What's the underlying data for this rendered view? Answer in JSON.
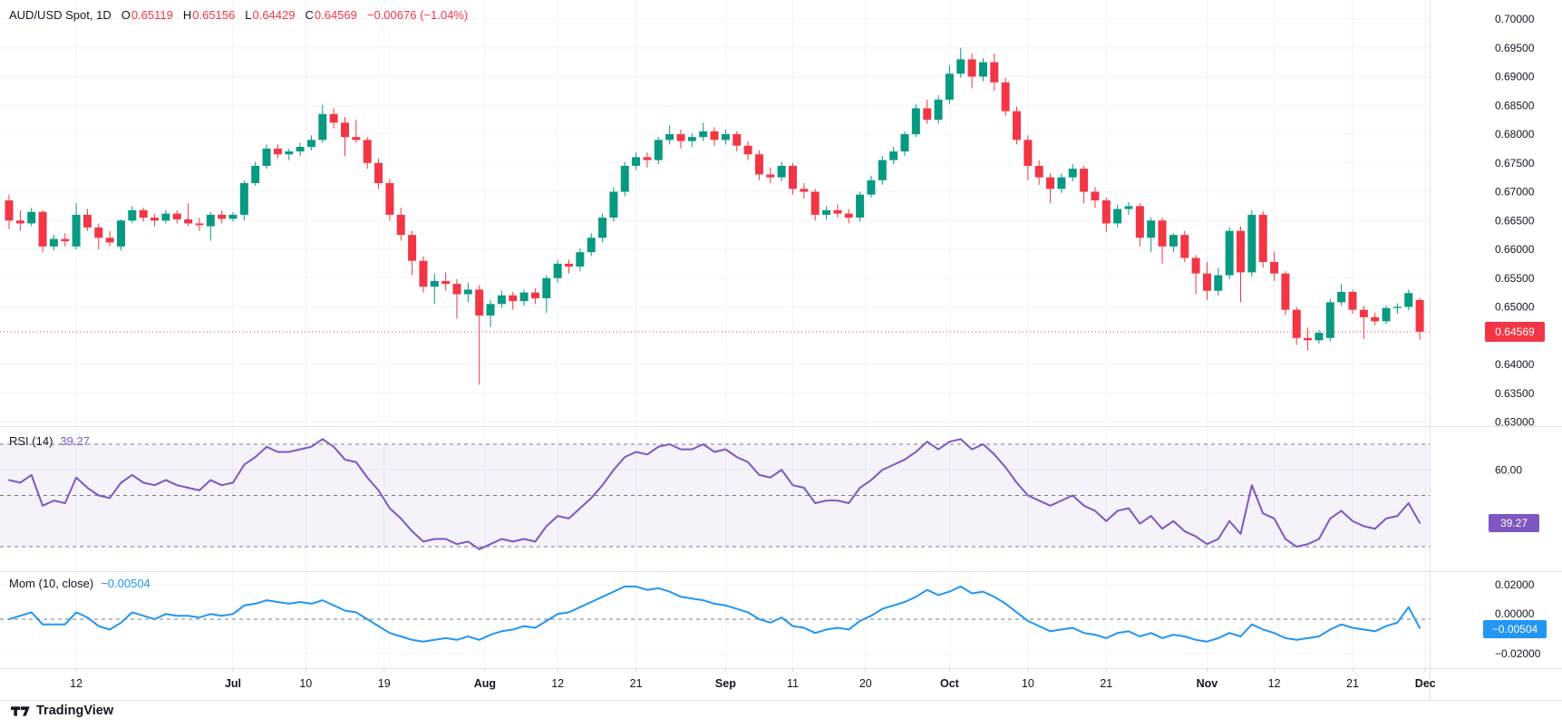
{
  "header": {
    "symbol": "AUD/USD Spot, 1D",
    "o_label": "O",
    "o": "0.65119",
    "h_label": "H",
    "h": "0.65156",
    "l_label": "L",
    "l": "0.64429",
    "c_label": "C",
    "c": "0.64569",
    "change": "−0.00676 (−1.04%)"
  },
  "rsi_legend": {
    "label": "RSI (14)",
    "value": "39.27"
  },
  "mom_legend": {
    "label": "Mom (10, close)",
    "value": "−0.00504"
  },
  "badges": {
    "price": "0.64569",
    "rsi": "39.27",
    "mom": "−0.00504"
  },
  "watermark": {
    "text": "TradingView"
  },
  "colors": {
    "up": "#089981",
    "down": "#F23645",
    "rsi": "#7E57C2",
    "rsi_band": "rgba(126,87,194,0.08)",
    "mom": "#2196F3",
    "grid": "#F0F3FA",
    "separator": "#E0E3EB",
    "dashed": "#787B86",
    "text": "#131722"
  },
  "chart_data": {
    "type": "candlestick",
    "title": "AUD/USD Spot, 1D",
    "symbol": "AUD/USD Spot",
    "interval": "1D",
    "ohlc_last": {
      "open": 0.65119,
      "high": 0.65156,
      "low": 0.64429,
      "close": 0.64569,
      "change": -0.00676,
      "change_pct": -1.04
    },
    "last_price": 0.64569,
    "price_axis": {
      "min": 0.63,
      "max": 0.7,
      "ticks": [
        {
          "label": "0.70000",
          "value": 0.7
        },
        {
          "label": "0.69500",
          "value": 0.695
        },
        {
          "label": "0.69000",
          "value": 0.69
        },
        {
          "label": "0.68500",
          "value": 0.685
        },
        {
          "label": "0.68000",
          "value": 0.68
        },
        {
          "label": "0.67500",
          "value": 0.675
        },
        {
          "label": "0.67000",
          "value": 0.67
        },
        {
          "label": "0.66500",
          "value": 0.665
        },
        {
          "label": "0.66000",
          "value": 0.66
        },
        {
          "label": "0.65500",
          "value": 0.655
        },
        {
          "label": "0.65000",
          "value": 0.65
        },
        {
          "label": "0.64000",
          "value": 0.64
        },
        {
          "label": "0.63500",
          "value": 0.635
        },
        {
          "label": "0.63000",
          "value": 0.63
        }
      ]
    },
    "time_ticks": [
      {
        "i": 6,
        "label": "12",
        "bold": false
      },
      {
        "i": 20,
        "label": "Jul",
        "bold": true
      },
      {
        "i": 26.5,
        "label": "10",
        "bold": false
      },
      {
        "i": 33.5,
        "label": "19",
        "bold": false
      },
      {
        "i": 42.5,
        "label": "Aug",
        "bold": true
      },
      {
        "i": 49,
        "label": "12",
        "bold": false
      },
      {
        "i": 56,
        "label": "21",
        "bold": false
      },
      {
        "i": 64,
        "label": "Sep",
        "bold": true
      },
      {
        "i": 70,
        "label": "11",
        "bold": false
      },
      {
        "i": 76.5,
        "label": "20",
        "bold": false
      },
      {
        "i": 84,
        "label": "Oct",
        "bold": true
      },
      {
        "i": 91,
        "label": "10",
        "bold": false
      },
      {
        "i": 98,
        "label": "21",
        "bold": false
      },
      {
        "i": 107,
        "label": "Nov",
        "bold": true
      },
      {
        "i": 113,
        "label": "12",
        "bold": false
      },
      {
        "i": 120,
        "label": "21",
        "bold": false
      },
      {
        "i": 126.5,
        "label": "Dec",
        "bold": true
      }
    ],
    "candles": [
      [
        0.6685,
        0.6695,
        0.6635,
        0.665
      ],
      [
        0.665,
        0.6668,
        0.6632,
        0.6645
      ],
      [
        0.6645,
        0.6672,
        0.664,
        0.6665
      ],
      [
        0.6665,
        0.6668,
        0.6595,
        0.6605
      ],
      [
        0.6605,
        0.6625,
        0.6598,
        0.6618
      ],
      [
        0.6618,
        0.6628,
        0.6605,
        0.6614
      ],
      [
        0.6605,
        0.668,
        0.66,
        0.666
      ],
      [
        0.666,
        0.667,
        0.6632,
        0.6638
      ],
      [
        0.6638,
        0.6645,
        0.66,
        0.662
      ],
      [
        0.662,
        0.6632,
        0.6605,
        0.6612
      ],
      [
        0.6605,
        0.6652,
        0.6598,
        0.665
      ],
      [
        0.665,
        0.6675,
        0.6645,
        0.6668
      ],
      [
        0.6668,
        0.6672,
        0.6648,
        0.6655
      ],
      [
        0.6655,
        0.6662,
        0.664,
        0.665
      ],
      [
        0.665,
        0.6668,
        0.6645,
        0.6662
      ],
      [
        0.6662,
        0.6668,
        0.6645,
        0.6652
      ],
      [
        0.6652,
        0.668,
        0.664,
        0.6645
      ],
      [
        0.6645,
        0.6655,
        0.6632,
        0.6642
      ],
      [
        0.664,
        0.6665,
        0.6615,
        0.666
      ],
      [
        0.666,
        0.6668,
        0.6645,
        0.6653
      ],
      [
        0.6653,
        0.6665,
        0.6648,
        0.666
      ],
      [
        0.666,
        0.672,
        0.665,
        0.6715
      ],
      [
        0.6715,
        0.6752,
        0.671,
        0.6745
      ],
      [
        0.6745,
        0.6782,
        0.674,
        0.6775
      ],
      [
        0.6775,
        0.6782,
        0.6758,
        0.6765
      ],
      [
        0.6765,
        0.6775,
        0.6755,
        0.677
      ],
      [
        0.677,
        0.6785,
        0.6762,
        0.6778
      ],
      [
        0.6778,
        0.6798,
        0.6772,
        0.679
      ],
      [
        0.679,
        0.6851,
        0.6785,
        0.6835
      ],
      [
        0.6835,
        0.6845,
        0.681,
        0.682
      ],
      [
        0.682,
        0.683,
        0.6762,
        0.6795
      ],
      [
        0.6795,
        0.6825,
        0.6785,
        0.679
      ],
      [
        0.679,
        0.6795,
        0.674,
        0.675
      ],
      [
        0.675,
        0.6758,
        0.6705,
        0.6715
      ],
      [
        0.6715,
        0.6722,
        0.665,
        0.666
      ],
      [
        0.666,
        0.6672,
        0.6615,
        0.6625
      ],
      [
        0.6625,
        0.6632,
        0.6555,
        0.658
      ],
      [
        0.658,
        0.6588,
        0.6525,
        0.6535
      ],
      [
        0.6535,
        0.6558,
        0.6505,
        0.6545
      ],
      [
        0.6545,
        0.656,
        0.6528,
        0.654
      ],
      [
        0.654,
        0.6548,
        0.648,
        0.6522
      ],
      [
        0.6522,
        0.6542,
        0.6508,
        0.653
      ],
      [
        0.653,
        0.6538,
        0.6365,
        0.6485
      ],
      [
        0.6485,
        0.6512,
        0.6465,
        0.6505
      ],
      [
        0.6505,
        0.6528,
        0.6498,
        0.652
      ],
      [
        0.652,
        0.6526,
        0.6495,
        0.651
      ],
      [
        0.651,
        0.653,
        0.6502,
        0.6525
      ],
      [
        0.6525,
        0.6532,
        0.6505,
        0.6515
      ],
      [
        0.6515,
        0.6555,
        0.649,
        0.655
      ],
      [
        0.655,
        0.6582,
        0.6542,
        0.6575
      ],
      [
        0.6575,
        0.6582,
        0.6558,
        0.657
      ],
      [
        0.657,
        0.6602,
        0.6562,
        0.6595
      ],
      [
        0.6595,
        0.6628,
        0.6588,
        0.662
      ],
      [
        0.662,
        0.6662,
        0.6612,
        0.6655
      ],
      [
        0.6655,
        0.6708,
        0.6648,
        0.67
      ],
      [
        0.67,
        0.6752,
        0.6692,
        0.6745
      ],
      [
        0.6745,
        0.6768,
        0.6738,
        0.676
      ],
      [
        0.676,
        0.6768,
        0.6742,
        0.6755
      ],
      [
        0.6755,
        0.6795,
        0.6748,
        0.679
      ],
      [
        0.679,
        0.6815,
        0.6782,
        0.68
      ],
      [
        0.68,
        0.6808,
        0.6775,
        0.6788
      ],
      [
        0.6788,
        0.6802,
        0.6778,
        0.6795
      ],
      [
        0.6795,
        0.682,
        0.6788,
        0.6805
      ],
      [
        0.6805,
        0.6812,
        0.678,
        0.679
      ],
      [
        0.679,
        0.6808,
        0.6782,
        0.68
      ],
      [
        0.68,
        0.6805,
        0.677,
        0.678
      ],
      [
        0.678,
        0.6788,
        0.6755,
        0.6765
      ],
      [
        0.6765,
        0.6772,
        0.672,
        0.673
      ],
      [
        0.673,
        0.6742,
        0.6715,
        0.6725
      ],
      [
        0.6725,
        0.6752,
        0.6718,
        0.6745
      ],
      [
        0.6745,
        0.675,
        0.6695,
        0.6705
      ],
      [
        0.6705,
        0.6715,
        0.6688,
        0.67
      ],
      [
        0.67,
        0.6705,
        0.665,
        0.666
      ],
      [
        0.666,
        0.6675,
        0.6652,
        0.6668
      ],
      [
        0.6668,
        0.6678,
        0.6655,
        0.6662
      ],
      [
        0.6662,
        0.667,
        0.6645,
        0.6655
      ],
      [
        0.6655,
        0.67,
        0.6648,
        0.6695
      ],
      [
        0.6695,
        0.6728,
        0.669,
        0.672
      ],
      [
        0.672,
        0.6762,
        0.6712,
        0.6755
      ],
      [
        0.6755,
        0.6778,
        0.6748,
        0.677
      ],
      [
        0.677,
        0.6805,
        0.6762,
        0.68
      ],
      [
        0.68,
        0.6852,
        0.6795,
        0.6845
      ],
      [
        0.6845,
        0.686,
        0.6818,
        0.6825
      ],
      [
        0.6825,
        0.6868,
        0.6818,
        0.686
      ],
      [
        0.686,
        0.692,
        0.6852,
        0.6905
      ],
      [
        0.6905,
        0.695,
        0.6898,
        0.693
      ],
      [
        0.693,
        0.694,
        0.688,
        0.69
      ],
      [
        0.69,
        0.6932,
        0.6892,
        0.6925
      ],
      [
        0.6925,
        0.694,
        0.6875,
        0.689
      ],
      [
        0.689,
        0.6898,
        0.6832,
        0.684
      ],
      [
        0.684,
        0.6848,
        0.6782,
        0.679
      ],
      [
        0.679,
        0.6798,
        0.672,
        0.6745
      ],
      [
        0.6745,
        0.6755,
        0.6712,
        0.6725
      ],
      [
        0.6725,
        0.6732,
        0.668,
        0.6705
      ],
      [
        0.6705,
        0.6732,
        0.6698,
        0.6725
      ],
      [
        0.6725,
        0.6748,
        0.6718,
        0.674
      ],
      [
        0.674,
        0.6745,
        0.668,
        0.67
      ],
      [
        0.67,
        0.6708,
        0.6672,
        0.6685
      ],
      [
        0.6685,
        0.669,
        0.663,
        0.6645
      ],
      [
        0.6645,
        0.6678,
        0.6638,
        0.667
      ],
      [
        0.667,
        0.6682,
        0.666,
        0.6675
      ],
      [
        0.6675,
        0.668,
        0.6605,
        0.662
      ],
      [
        0.662,
        0.6655,
        0.6595,
        0.665
      ],
      [
        0.665,
        0.6655,
        0.6575,
        0.6605
      ],
      [
        0.6605,
        0.6628,
        0.6595,
        0.6625
      ],
      [
        0.6625,
        0.6632,
        0.6578,
        0.6585
      ],
      [
        0.6585,
        0.659,
        0.6522,
        0.6558
      ],
      [
        0.6558,
        0.6578,
        0.6512,
        0.6528
      ],
      [
        0.6528,
        0.6568,
        0.652,
        0.6555
      ],
      [
        0.6555,
        0.6638,
        0.6548,
        0.6632
      ],
      [
        0.6632,
        0.664,
        0.6508,
        0.656
      ],
      [
        0.656,
        0.6668,
        0.6552,
        0.666
      ],
      [
        0.666,
        0.6666,
        0.6568,
        0.6578
      ],
      [
        0.6578,
        0.6596,
        0.6545,
        0.6558
      ],
      [
        0.6558,
        0.6562,
        0.6486,
        0.6495
      ],
      [
        0.6495,
        0.65,
        0.6434,
        0.6446
      ],
      [
        0.6446,
        0.6464,
        0.6424,
        0.6442
      ],
      [
        0.6442,
        0.646,
        0.6436,
        0.6455
      ],
      [
        0.6446,
        0.6514,
        0.644,
        0.6508
      ],
      [
        0.6508,
        0.654,
        0.6502,
        0.6526
      ],
      [
        0.6526,
        0.653,
        0.6488,
        0.6495
      ],
      [
        0.6495,
        0.6502,
        0.6444,
        0.6482
      ],
      [
        0.6482,
        0.649,
        0.6468,
        0.6475
      ],
      [
        0.6475,
        0.6502,
        0.647,
        0.6498
      ],
      [
        0.6498,
        0.6506,
        0.6488,
        0.65
      ],
      [
        0.65,
        0.653,
        0.6494,
        0.6524
      ],
      [
        0.65119,
        0.65156,
        0.64429,
        0.64569
      ]
    ],
    "rsi": {
      "label": "RSI (14)",
      "period": 14,
      "value": 39.27,
      "upper_band": 70,
      "middle_band": 50,
      "lower_band": 30,
      "axis_tick": {
        "label": "60.00",
        "value": 60
      },
      "values": [
        56,
        55,
        58,
        46,
        48,
        47,
        57,
        53,
        50,
        49,
        55,
        58,
        55,
        54,
        56,
        54,
        53,
        52,
        56,
        54,
        55,
        62,
        65,
        69,
        67,
        67,
        68,
        69,
        72,
        69,
        64,
        63,
        57,
        52,
        45,
        41,
        36,
        32,
        33,
        33,
        31,
        32,
        29,
        31,
        33,
        32,
        33,
        32,
        38,
        42,
        41,
        45,
        49,
        54,
        60,
        65,
        67,
        66,
        69,
        70,
        68,
        68,
        70,
        67,
        68,
        65,
        63,
        58,
        57,
        60,
        54,
        53,
        47,
        48,
        48,
        47,
        53,
        56,
        60,
        62,
        64,
        67,
        71,
        68,
        71,
        72,
        68,
        70,
        66,
        61,
        55,
        50,
        48,
        46,
        48,
        50,
        46,
        44,
        40,
        44,
        45,
        39,
        42,
        37,
        40,
        36,
        34,
        31,
        33,
        40,
        35,
        54,
        43,
        41,
        33,
        30,
        31,
        33,
        41,
        44,
        40,
        38,
        37,
        41,
        42,
        47,
        39.27
      ]
    },
    "momentum": {
      "label": "Mom (10, close)",
      "value": -0.00504,
      "axis_ticks": [
        {
          "label": "0.02000",
          "value": 0.02
        },
        {
          "label": "0.00000",
          "value": 0
        },
        {
          "label": "−0.02000",
          "value": -0.02
        }
      ],
      "values": [
        0,
        0.002,
        0.004,
        -0.003,
        -0.003,
        -0.003,
        0.004,
        0.001,
        -0.004,
        -0.006,
        -0.002,
        0.004,
        0.002,
        0,
        0.003,
        0.002,
        0.002,
        0.001,
        0.003,
        0.002,
        0.003,
        0.008,
        0.009,
        0.011,
        0.01,
        0.009,
        0.01,
        0.009,
        0.011,
        0.008,
        0.005,
        0.004,
        0,
        -0.004,
        -0.008,
        -0.01,
        -0.012,
        -0.013,
        -0.012,
        -0.011,
        -0.012,
        -0.01,
        -0.012,
        -0.009,
        -0.007,
        -0.006,
        -0.004,
        -0.005,
        -0.001,
        0.003,
        0.004,
        0.007,
        0.01,
        0.013,
        0.016,
        0.019,
        0.019,
        0.017,
        0.018,
        0.016,
        0.013,
        0.012,
        0.011,
        0.009,
        0.008,
        0.006,
        0.004,
        0,
        -0.002,
        0.001,
        -0.004,
        -0.005,
        -0.008,
        -0.006,
        -0.005,
        -0.006,
        -0.001,
        0.002,
        0.006,
        0.008,
        0.01,
        0.013,
        0.017,
        0.014,
        0.016,
        0.019,
        0.015,
        0.016,
        0.013,
        0.009,
        0.004,
        -0.001,
        -0.004,
        -0.007,
        -0.006,
        -0.005,
        -0.008,
        -0.009,
        -0.011,
        -0.008,
        -0.007,
        -0.01,
        -0.008,
        -0.011,
        -0.009,
        -0.01,
        -0.012,
        -0.013,
        -0.011,
        -0.008,
        -0.01,
        -0.003,
        -0.006,
        -0.008,
        -0.011,
        -0.012,
        -0.011,
        -0.01,
        -0.006,
        -0.003,
        -0.005,
        -0.006,
        -0.007,
        -0.004,
        -0.002,
        0.007,
        -0.00504
      ]
    }
  }
}
